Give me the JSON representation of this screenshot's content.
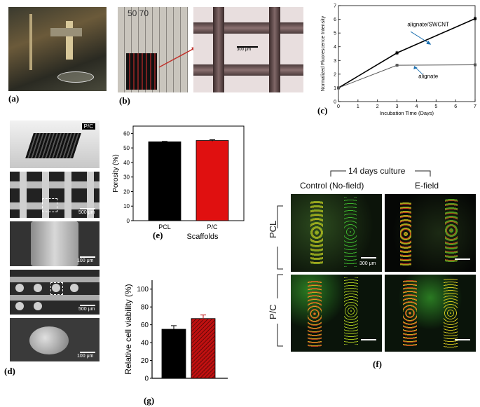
{
  "panels": {
    "a": "(a)",
    "b": "(b)",
    "c": "(c)",
    "d": "(d)",
    "e": "(e)",
    "f": "(f)",
    "g": "(g)"
  },
  "panel_b": {
    "ruler_text": "50   70",
    "scale_text": "300 μm"
  },
  "panel_d": {
    "tag": "P/C",
    "scales": [
      "500 μm",
      "100 μm",
      "500 μm",
      "100 μm"
    ]
  },
  "panel_f": {
    "header": "14 days culture",
    "col1": "Control (No-field)",
    "col2": "E-field",
    "row1": "PCL",
    "row2": "P/C",
    "scale_text": "300 μm"
  },
  "chart_data": [
    {
      "id": "c",
      "type": "line",
      "xlabel": "Incubation Time (Days)",
      "ylabel": "Normalized Fluorescence Intensity",
      "xlim": [
        0,
        7
      ],
      "ylim": [
        0,
        7
      ],
      "xticks": [
        0,
        1,
        2,
        3,
        4,
        5,
        6,
        7
      ],
      "yticks": [
        0,
        1,
        2,
        3,
        4,
        5,
        6,
        7
      ],
      "series": [
        {
          "name": "alignate/SWCNT",
          "x": [
            0,
            3,
            7
          ],
          "y": [
            1.0,
            3.55,
            6.05
          ],
          "err": [
            0.08,
            0.15,
            0.2
          ],
          "color": "#000000"
        },
        {
          "name": "alignate",
          "x": [
            0,
            3,
            7
          ],
          "y": [
            1.0,
            2.65,
            2.68
          ],
          "err": [
            0.05,
            0.08,
            0.08
          ],
          "color": "#555555"
        }
      ],
      "annotations": [
        "alignate/SWCNT",
        "alignate"
      ]
    },
    {
      "id": "e",
      "type": "bar",
      "categories": [
        "PCL",
        "P/C"
      ],
      "values": [
        54.2,
        55.1
      ],
      "err": [
        0.3,
        0.5
      ],
      "colors": [
        "#000000",
        "#e01010"
      ],
      "xlabel": "Scaffolds",
      "ylabel": "Porosity (%)",
      "ylim": [
        0,
        65
      ],
      "yticks": [
        0,
        10,
        20,
        30,
        40,
        50,
        60
      ]
    },
    {
      "id": "g",
      "type": "bar",
      "categories": [
        "",
        ""
      ],
      "values": [
        55,
        67
      ],
      "err": [
        4,
        4
      ],
      "colors": [
        "#000000",
        "#c01010"
      ],
      "ylabel": "Relative cell viability (%)",
      "ylim": [
        0,
        110
      ],
      "yticks": [
        0,
        20,
        40,
        60,
        80,
        100
      ]
    }
  ]
}
